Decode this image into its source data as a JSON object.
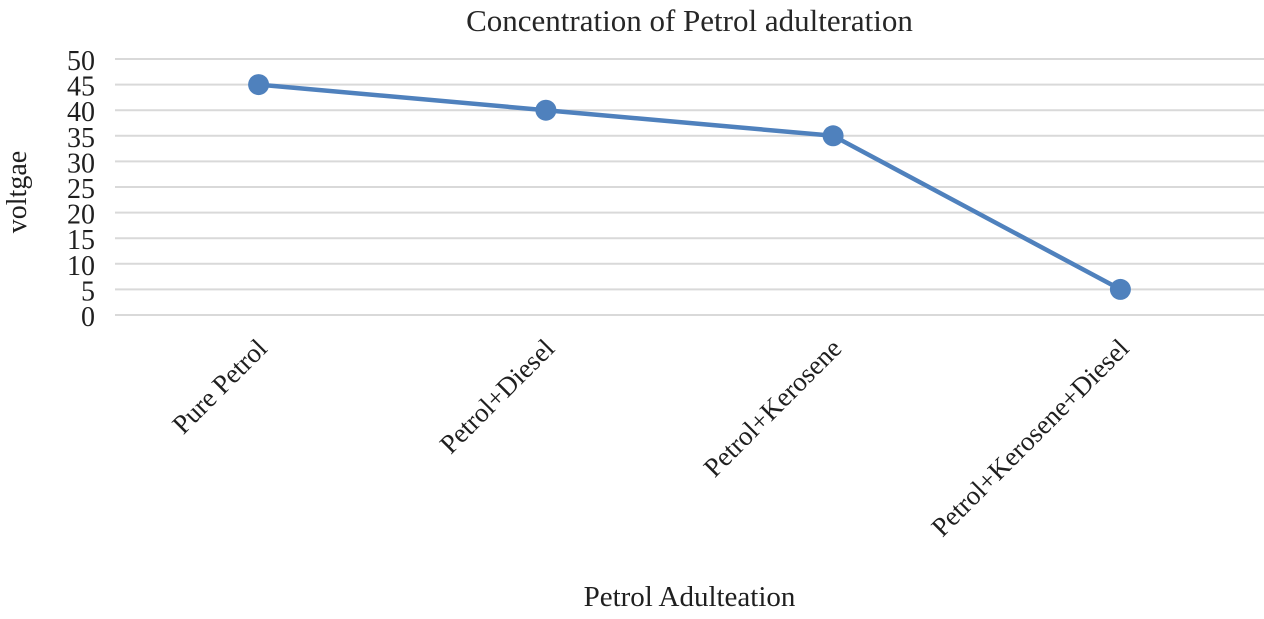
{
  "chart_data": {
    "type": "line",
    "title": "Concentration of Petrol adulteration",
    "xlabel": "Petrol Adulteation",
    "ylabel": "voltgae",
    "categories": [
      "Pure Petrol",
      "Petrol+Diesel",
      "Petrol+Kerosene",
      "Petrol+Kerosene+Diesel"
    ],
    "values": [
      45,
      40,
      35,
      5
    ],
    "yticks": [
      0,
      5,
      10,
      15,
      20,
      25,
      30,
      35,
      40,
      45,
      50
    ],
    "ylim": [
      0,
      50
    ],
    "grid": true,
    "legend": false,
    "category_label_rotation_deg": -45,
    "colors": {
      "line": "#4F81BD",
      "marker": "#4F81BD",
      "gridline": "#D9D9D9",
      "text": "#1F1F1F"
    }
  }
}
